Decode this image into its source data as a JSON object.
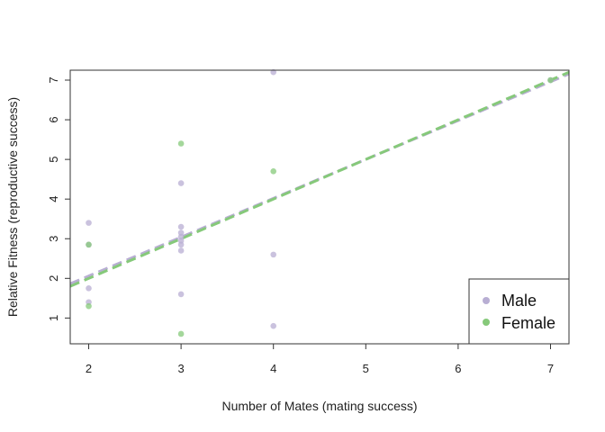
{
  "chart_data": {
    "type": "scatter",
    "title": "",
    "xlabel": "Number of Mates (mating success)",
    "ylabel": "Relative Fitness (reproductive success)",
    "xlim": [
      1.8,
      7.2
    ],
    "ylim": [
      0.35,
      7.25
    ],
    "xticks": [
      "2",
      "3",
      "4",
      "5",
      "6",
      "7"
    ],
    "yticks": [
      "1",
      "2",
      "3",
      "4",
      "5",
      "6",
      "7"
    ],
    "grid": false,
    "legend_position": "bottom-right",
    "series": [
      {
        "name": "Male",
        "color": "#b8aed3",
        "points": [
          {
            "x": 2,
            "y": 3.4
          },
          {
            "x": 2,
            "y": 2.85
          },
          {
            "x": 2,
            "y": 1.75
          },
          {
            "x": 2,
            "y": 1.4
          },
          {
            "x": 3,
            "y": 4.4
          },
          {
            "x": 3,
            "y": 3.3
          },
          {
            "x": 3,
            "y": 3.15
          },
          {
            "x": 3,
            "y": 3.05
          },
          {
            "x": 3,
            "y": 2.95
          },
          {
            "x": 3,
            "y": 2.85
          },
          {
            "x": 3,
            "y": 2.7
          },
          {
            "x": 3,
            "y": 1.6
          },
          {
            "x": 4,
            "y": 7.2
          },
          {
            "x": 4,
            "y": 2.6
          },
          {
            "x": 4,
            "y": 0.8
          },
          {
            "x": 7,
            "y": 7.0
          }
        ],
        "fit": {
          "intercept": 0.1,
          "slope": 0.98
        }
      },
      {
        "name": "Female",
        "color": "#86c97a",
        "points": [
          {
            "x": 2,
            "y": 2.85
          },
          {
            "x": 2,
            "y": 1.3
          },
          {
            "x": 3,
            "y": 5.4
          },
          {
            "x": 3,
            "y": 0.6
          },
          {
            "x": 4,
            "y": 4.7
          },
          {
            "x": 7,
            "y": 7.0
          }
        ],
        "fit": {
          "intercept": 0.0,
          "slope": 1.0
        }
      }
    ]
  }
}
